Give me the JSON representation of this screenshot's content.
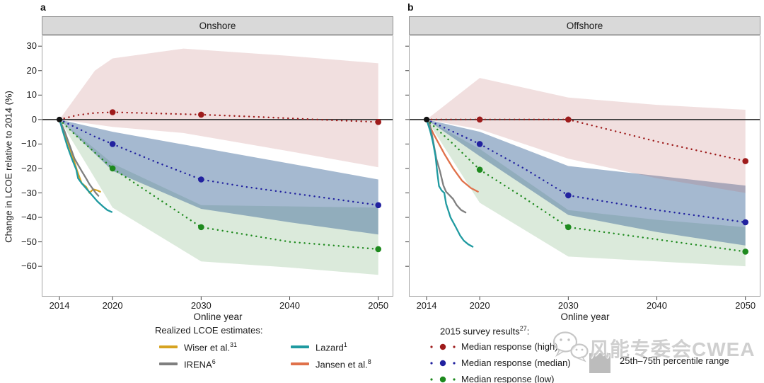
{
  "figure": {
    "panel_a_label": "a",
    "panel_b_label": "b",
    "xlabel": "Online year",
    "ylabel": "Change in LCOE relative to 2014 (%)"
  },
  "axes": {
    "x_ticks": [
      "2014",
      "2020",
      "2030",
      "2040",
      "2050"
    ],
    "x_tick_years": [
      2014,
      2020,
      2030,
      2040,
      2050
    ],
    "y_ticks": [
      "30",
      "20",
      "10",
      "0",
      "−10",
      "−20",
      "−30",
      "−40",
      "−50",
      "−60"
    ],
    "y_tick_values": [
      30,
      20,
      10,
      0,
      -10,
      -20,
      -30,
      -40,
      -50,
      -60
    ],
    "x_range": [
      2012.0,
      2051.7
    ],
    "y_range": [
      -72.4,
      34.4
    ],
    "grid": false
  },
  "colors": {
    "series": {
      "high": "#9e1b1b",
      "median": "#21219f",
      "low": "#1e8a1e",
      "wiser": "#d6a321",
      "irena": "#7f7f7f",
      "lazard": "#1f9aa0",
      "jansen": "#e0714a"
    },
    "bands": {
      "high": "rgba(190,110,110,0.22)",
      "median": "rgba(55,100,150,0.45)",
      "low": "rgba(110,170,110,0.25)"
    },
    "zero_line": "#3a3a3a",
    "origin_dot": "#111111",
    "frame": "#a6a6a6",
    "header_bg": "#d9d9d9"
  },
  "chart_data": [
    {
      "type": "line",
      "title": "Onshore",
      "xlabel": "Online year",
      "show_y_labels": true,
      "origin": {
        "x": 2014,
        "y": 0
      },
      "series": [
        {
          "name": "Median response (high)",
          "key": "high",
          "x": [
            2014,
            2016,
            2018,
            2020,
            2025,
            2030,
            2035,
            2040,
            2045,
            2050
          ],
          "values": [
            0,
            1.8,
            2.7,
            3,
            2.5,
            2,
            1.3,
            0.5,
            -0.3,
            -1
          ],
          "marker_years": [
            2020,
            2030,
            2050
          ],
          "marker_values": [
            3,
            2,
            -1
          ]
        },
        {
          "name": "Median response (median)",
          "key": "median",
          "x": [
            2014,
            2016,
            2018,
            2020,
            2025,
            2030,
            2035,
            2040,
            2045,
            2050
          ],
          "values": [
            0,
            -3.5,
            -7,
            -10,
            -17.5,
            -24.5,
            -27.5,
            -30,
            -32.5,
            -35
          ],
          "marker_years": [
            2020,
            2030,
            2050
          ],
          "marker_values": [
            -10,
            -24.5,
            -35
          ]
        },
        {
          "name": "Median response (low)",
          "key": "low",
          "x": [
            2014,
            2016,
            2018,
            2020,
            2025,
            2030,
            2035,
            2040,
            2045,
            2050
          ],
          "values": [
            0,
            -7,
            -13.5,
            -20,
            -32,
            -44,
            -47,
            -50,
            -51.5,
            -53
          ],
          "marker_years": [
            2020,
            2030,
            2050
          ],
          "marker_values": [
            -20,
            -44,
            -53
          ]
        }
      ],
      "bands": [
        {
          "key": "low",
          "x": [
            2014,
            2020,
            2030,
            2040,
            2050
          ],
          "top": [
            0,
            -18,
            -35,
            -35.5,
            -36
          ],
          "bottom": [
            0,
            -36,
            -58,
            -60.5,
            -63.5
          ]
        },
        {
          "key": "median",
          "x": [
            2014,
            2020,
            2030,
            2040,
            2050
          ],
          "top": [
            0,
            -5,
            -11.5,
            -18,
            -24.5
          ],
          "bottom": [
            0,
            -21,
            -36.5,
            -42,
            -47
          ]
        },
        {
          "key": "high",
          "x": [
            2014,
            2018,
            2020,
            2028,
            2040,
            2050
          ],
          "top": [
            0,
            20,
            25,
            29,
            26,
            23
          ],
          "bottom": [
            0,
            -2,
            -3,
            -5.5,
            -13,
            -19.5
          ]
        }
      ],
      "realized": [
        {
          "name": "Wiser et al.",
          "key": "wiser",
          "points": [
            [
              2014,
              0
            ],
            [
              2014.7,
              -7
            ],
            [
              2015.4,
              -14
            ],
            [
              2016,
              -21
            ],
            [
              2016.5,
              -26
            ],
            [
              2017,
              -27.5
            ],
            [
              2017.4,
              -30
            ],
            [
              2017.8,
              -28.5
            ],
            [
              2018.3,
              -29
            ],
            [
              2018.6,
              -29.5
            ]
          ]
        },
        {
          "name": "IRENA",
          "key": "irena",
          "points": [
            [
              2014,
              0
            ],
            [
              2014.6,
              -5
            ],
            [
              2015.2,
              -11
            ],
            [
              2015.7,
              -16
            ],
            [
              2016.1,
              -18.5
            ],
            [
              2016.5,
              -21
            ],
            [
              2017,
              -24
            ],
            [
              2017.4,
              -26.5
            ],
            [
              2017.8,
              -28.5
            ],
            [
              2018.1,
              -30
            ],
            [
              2018.4,
              -31.2
            ]
          ]
        },
        {
          "name": "Lazard",
          "key": "lazard",
          "points": [
            [
              2014,
              0
            ],
            [
              2014.4,
              -5
            ],
            [
              2014.9,
              -11
            ],
            [
              2015.4,
              -16
            ],
            [
              2015.9,
              -20.5
            ],
            [
              2016.1,
              -24
            ],
            [
              2016.5,
              -26
            ],
            [
              2017.1,
              -28.5
            ],
            [
              2017.7,
              -31
            ],
            [
              2018.3,
              -33.5
            ],
            [
              2018.9,
              -35.5
            ],
            [
              2019.4,
              -37
            ],
            [
              2019.9,
              -37.8
            ]
          ]
        }
      ]
    },
    {
      "type": "line",
      "title": "Offshore",
      "xlabel": "Online year",
      "show_y_labels": false,
      "origin": {
        "x": 2014,
        "y": 0
      },
      "series": [
        {
          "name": "Median response (high)",
          "key": "high",
          "x": [
            2014,
            2020,
            2030,
            2035,
            2040,
            2045,
            2050
          ],
          "values": [
            0,
            0,
            0,
            -4.5,
            -9,
            -13,
            -17
          ],
          "marker_years": [
            2020,
            2030,
            2050
          ],
          "marker_values": [
            0,
            0,
            -17
          ]
        },
        {
          "name": "Median response (median)",
          "key": "median",
          "x": [
            2014,
            2017,
            2020,
            2025,
            2030,
            2035,
            2040,
            2045,
            2050
          ],
          "values": [
            0,
            -5,
            -10,
            -20,
            -31,
            -34,
            -37,
            -39.5,
            -42
          ],
          "marker_years": [
            2020,
            2030,
            2050
          ],
          "marker_values": [
            -10,
            -31,
            -42
          ]
        },
        {
          "name": "Median response (low)",
          "key": "low",
          "x": [
            2014,
            2017,
            2020,
            2025,
            2030,
            2035,
            2040,
            2045,
            2050
          ],
          "values": [
            0,
            -10,
            -20.5,
            -32,
            -44,
            -46.5,
            -49,
            -51.5,
            -54
          ],
          "marker_years": [
            2020,
            2030,
            2050
          ],
          "marker_values": [
            -20.5,
            -44,
            -54
          ]
        }
      ],
      "bands": [
        {
          "key": "low",
          "x": [
            2014,
            2020,
            2030,
            2040,
            2050
          ],
          "top": [
            0,
            -12,
            -37,
            -41,
            -44
          ],
          "bottom": [
            0,
            -34,
            -56,
            -58,
            -60
          ]
        },
        {
          "key": "median",
          "x": [
            2014,
            2020,
            2030,
            2040,
            2050
          ],
          "top": [
            0,
            -5,
            -19,
            -23,
            -27
          ],
          "bottom": [
            0,
            -15,
            -39,
            -46,
            -51.5
          ]
        },
        {
          "key": "high",
          "x": [
            2014,
            2020,
            2030,
            2040,
            2050
          ],
          "top": [
            0,
            17,
            9,
            6,
            4
          ],
          "bottom": [
            0,
            -4,
            -16,
            -24,
            -30
          ]
        }
      ],
      "realized": [
        {
          "name": "Jansen et al.",
          "key": "jansen",
          "points": [
            [
              2014,
              0
            ],
            [
              2014.8,
              -6
            ],
            [
              2016,
              -14
            ],
            [
              2017,
              -20
            ],
            [
              2018,
              -25
            ],
            [
              2019,
              -28
            ],
            [
              2019.8,
              -29.5
            ]
          ]
        },
        {
          "name": "IRENA",
          "key": "irena",
          "points": [
            [
              2014,
              0
            ],
            [
              2014.3,
              -1
            ],
            [
              2014.7,
              -8
            ],
            [
              2015.1,
              -16
            ],
            [
              2015.5,
              -21
            ],
            [
              2015.9,
              -27
            ],
            [
              2016.2,
              -29.5
            ],
            [
              2016.6,
              -31
            ],
            [
              2017,
              -32.5
            ],
            [
              2017.4,
              -35
            ],
            [
              2017.9,
              -37
            ],
            [
              2018.4,
              -38
            ]
          ]
        },
        {
          "name": "Lazard",
          "key": "lazard",
          "points": [
            [
              2014,
              0
            ],
            [
              2014.4,
              -4.6
            ],
            [
              2014.7,
              -9
            ],
            [
              2015,
              -14.8
            ],
            [
              2015.2,
              -21.5
            ],
            [
              2015.4,
              -27.2
            ],
            [
              2015.7,
              -29
            ],
            [
              2016,
              -30
            ],
            [
              2016.2,
              -34.4
            ],
            [
              2016.7,
              -40
            ],
            [
              2017.3,
              -44
            ],
            [
              2017.8,
              -47.5
            ],
            [
              2018.2,
              -49.5
            ],
            [
              2018.7,
              -51
            ],
            [
              2019.2,
              -52
            ]
          ]
        }
      ]
    }
  ],
  "legend_realized": {
    "title": "Realized LCOE estimates:",
    "items": [
      {
        "label": "Wiser et al.",
        "sup": "31",
        "key": "wiser"
      },
      {
        "label": "Lazard",
        "sup": "1",
        "key": "lazard"
      },
      {
        "label": "IRENA",
        "sup": "6",
        "key": "irena"
      },
      {
        "label": "Jansen et al.",
        "sup": "8",
        "key": "jansen"
      }
    ]
  },
  "legend_survey": {
    "title": "2015 survey results",
    "title_sup": "27",
    "title_suffix": ":",
    "items": [
      {
        "label": "Median response (high)",
        "key": "high"
      },
      {
        "label": "Median response (median)",
        "key": "median"
      },
      {
        "label": "Median response (low)",
        "key": "low"
      }
    ]
  },
  "legend_percentile": {
    "label": "25th–75th percentile range"
  },
  "watermark": {
    "text": "风能专委会CWEA"
  }
}
